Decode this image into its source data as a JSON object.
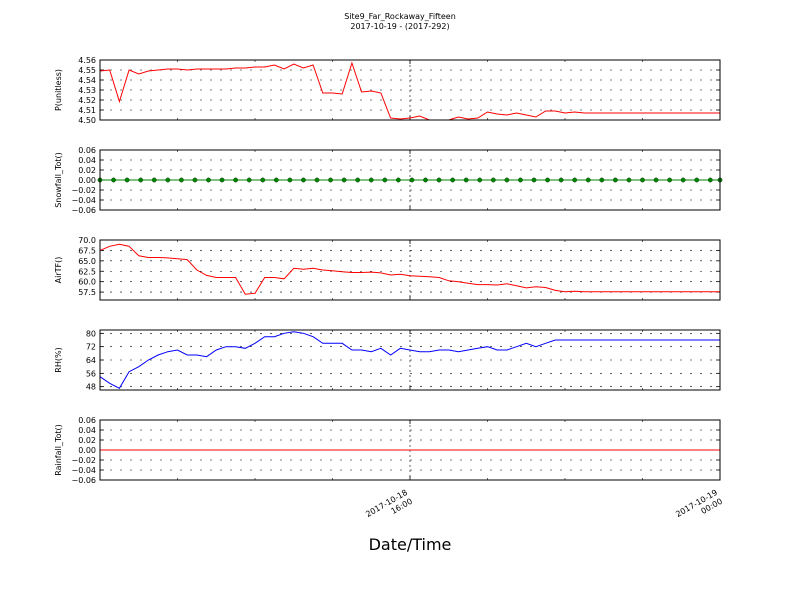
{
  "figure": {
    "title": "Site9_Far_Rockaway_Fifteen",
    "subtitle": "2017-10-19 - (2017-292)",
    "xlabel": "Date/Time",
    "x_ticks": [
      {
        "x": 8,
        "line1": "2017-10-18",
        "line2": "16:00"
      },
      {
        "x": 16,
        "line1": "2017-10-19",
        "line2": "00:00"
      }
    ]
  },
  "chart_data": [
    {
      "type": "line",
      "ylabel": "P(unitless)",
      "ylim": [
        4.5,
        4.56
      ],
      "xlim": [
        0,
        16
      ],
      "yticks": [
        "4.50",
        "4.51",
        "4.52",
        "4.53",
        "4.54",
        "4.55",
        "4.56"
      ],
      "grid": true,
      "color": "#ff0000",
      "markers": false,
      "x": [
        0,
        0.25,
        0.5,
        0.75,
        1,
        1.25,
        1.5,
        1.75,
        2,
        2.25,
        2.5,
        2.75,
        3,
        3.25,
        3.5,
        3.75,
        4,
        4.25,
        4.5,
        4.75,
        5,
        5.25,
        5.5,
        5.75,
        6,
        6.25,
        6.5,
        6.75,
        7,
        7.25,
        7.5,
        7.75,
        8,
        8.25,
        8.5,
        8.75,
        9,
        9.25,
        9.5,
        9.75,
        10,
        10.25,
        10.5,
        10.75,
        11,
        11.25,
        11.5,
        11.75,
        12,
        12.25,
        12.5,
        12.75,
        13,
        13.25,
        13.5,
        13.75,
        14,
        14.25,
        14.5,
        14.75,
        15,
        15.25,
        15.5,
        15.75,
        16
      ],
      "y": [
        4.549,
        4.55,
        4.5185,
        4.55,
        4.546,
        4.549,
        4.55,
        4.551,
        4.551,
        4.55,
        4.551,
        4.551,
        4.551,
        4.551,
        4.552,
        4.552,
        4.553,
        4.553,
        4.555,
        4.551,
        4.556,
        4.552,
        4.555,
        4.527,
        4.527,
        4.526,
        4.557,
        4.528,
        4.529,
        4.527,
        4.502,
        4.501,
        4.502,
        4.504,
        4.5,
        4.5,
        4.5,
        4.503,
        4.501,
        4.502,
        4.508,
        4.506,
        4.505,
        4.507,
        4.505,
        4.503,
        4.509,
        4.509,
        4.507,
        4.508,
        4.507,
        4.507,
        4.507,
        4.507,
        4.507,
        4.507,
        4.507,
        4.507,
        4.507,
        4.507,
        4.507,
        4.507,
        4.507,
        4.507,
        4.507
      ]
    },
    {
      "type": "line",
      "ylabel": "Snowfall_Tot()",
      "ylim": [
        -0.06,
        0.06
      ],
      "xlim": [
        0,
        16
      ],
      "yticks": [
        "−0.06",
        "−0.04",
        "−0.02",
        "0.00",
        "0.02",
        "0.04",
        "0.06"
      ],
      "grid": true,
      "color": "#008000",
      "markers": true,
      "x": [
        0,
        0.35,
        0.7,
        1.05,
        1.4,
        1.75,
        2.1,
        2.45,
        2.8,
        3.15,
        3.5,
        3.85,
        4.2,
        4.55,
        4.9,
        5.25,
        5.6,
        5.95,
        6.3,
        6.65,
        7,
        7.35,
        7.7,
        8.05,
        8.4,
        8.75,
        9.1,
        9.45,
        9.8,
        10.15,
        10.5,
        10.85,
        11.2,
        11.55,
        11.9,
        12.25,
        12.6,
        12.95,
        13.3,
        13.65,
        14,
        14.35,
        14.7,
        15.05,
        15.4,
        15.75,
        16
      ],
      "y": [
        0,
        0,
        0,
        0,
        0,
        0,
        0,
        0,
        0,
        0,
        0,
        0,
        0,
        0,
        0,
        0,
        0,
        0,
        0,
        0,
        0,
        0,
        0,
        0,
        0,
        0,
        0,
        0,
        0,
        0,
        0,
        0,
        0,
        0,
        0,
        0,
        0,
        0,
        0,
        0,
        0,
        0,
        0,
        0,
        0,
        0,
        0
      ]
    },
    {
      "type": "line",
      "ylabel": "AirTF()",
      "ylim": [
        55.6,
        70.0
      ],
      "xlim": [
        0,
        16
      ],
      "yticks": [
        "57.5",
        "60.0",
        "62.5",
        "65.0",
        "67.5",
        "70.0"
      ],
      "grid": true,
      "color": "#ff0000",
      "markers": false,
      "x": [
        0,
        0.25,
        0.5,
        0.75,
        1,
        1.25,
        1.5,
        1.75,
        2,
        2.25,
        2.5,
        2.75,
        3,
        3.25,
        3.5,
        3.75,
        4,
        4.25,
        4.5,
        4.75,
        5,
        5.25,
        5.5,
        5.75,
        6,
        6.25,
        6.5,
        6.75,
        7,
        7.25,
        7.5,
        7.75,
        8,
        8.25,
        8.5,
        8.75,
        9,
        9.25,
        9.5,
        9.75,
        10,
        10.25,
        10.5,
        10.75,
        11,
        11.25,
        11.5,
        11.75,
        12,
        12.25,
        12.5,
        12.75,
        13,
        13.25,
        13.5,
        13.75,
        14,
        14.25,
        14.5,
        14.75,
        15,
        15.25,
        15.5,
        15.75,
        16
      ],
      "y": [
        67.5,
        68.5,
        69.0,
        68.5,
        66.2,
        65.8,
        65.8,
        65.7,
        65.5,
        65.3,
        62.8,
        61.5,
        61.0,
        61.0,
        61.0,
        57.0,
        57.2,
        61.0,
        61.0,
        60.7,
        63.2,
        63.0,
        63.2,
        62.8,
        62.6,
        62.4,
        62.2,
        62.2,
        62.3,
        62.1,
        61.6,
        61.8,
        61.4,
        61.3,
        61.2,
        61.0,
        60.2,
        60.0,
        59.6,
        59.3,
        59.3,
        59.2,
        59.5,
        59.0,
        58.5,
        58.8,
        58.6,
        57.9,
        57.6,
        57.7,
        57.6,
        57.6,
        57.6,
        57.6,
        57.6,
        57.6,
        57.6,
        57.6,
        57.6,
        57.6,
        57.6,
        57.6,
        57.6,
        57.6,
        57.6
      ]
    },
    {
      "type": "line",
      "ylabel": "RH(%)",
      "ylim": [
        46,
        82
      ],
      "xlim": [
        0,
        16
      ],
      "yticks": [
        "48",
        "56",
        "64",
        "72",
        "80"
      ],
      "grid": true,
      "color": "#0000ff",
      "markers": false,
      "x": [
        0,
        0.25,
        0.5,
        0.75,
        1,
        1.25,
        1.5,
        1.75,
        2,
        2.25,
        2.5,
        2.75,
        3,
        3.25,
        3.5,
        3.75,
        4,
        4.25,
        4.5,
        4.75,
        5,
        5.25,
        5.5,
        5.75,
        6,
        6.25,
        6.5,
        6.75,
        7,
        7.25,
        7.5,
        7.75,
        8,
        8.25,
        8.5,
        8.75,
        9,
        9.25,
        9.5,
        9.75,
        10,
        10.25,
        10.5,
        10.75,
        11,
        11.25,
        11.5,
        11.75,
        12,
        12.25,
        12.5,
        12.75,
        13,
        13.25,
        13.5,
        13.75,
        14,
        14.25,
        14.5,
        14.75,
        15,
        15.25,
        15.5,
        15.75,
        16
      ],
      "y": [
        54,
        50,
        47,
        57,
        60,
        64,
        67,
        69,
        70,
        67,
        67,
        66,
        70,
        72,
        72,
        71,
        74,
        78,
        78,
        80,
        81,
        80,
        78,
        74,
        74,
        74,
        70,
        70,
        69,
        71,
        67,
        71,
        70,
        69,
        69,
        70,
        70,
        69,
        70,
        71,
        72,
        70,
        70,
        72,
        74,
        72,
        74,
        76,
        76,
        76,
        76,
        76,
        76,
        76,
        76,
        76,
        76,
        76,
        76,
        76,
        76,
        76,
        76,
        76,
        76
      ]
    },
    {
      "type": "line",
      "ylabel": "Rainfall_Tot()",
      "ylim": [
        -0.06,
        0.06
      ],
      "xlim": [
        0,
        16
      ],
      "yticks": [
        "−0.06",
        "−0.04",
        "−0.02",
        "0.00",
        "0.02",
        "0.04",
        "0.06"
      ],
      "grid": true,
      "color": "#ff0000",
      "markers": false,
      "x": [
        0,
        16
      ],
      "y": [
        0,
        0
      ]
    }
  ]
}
